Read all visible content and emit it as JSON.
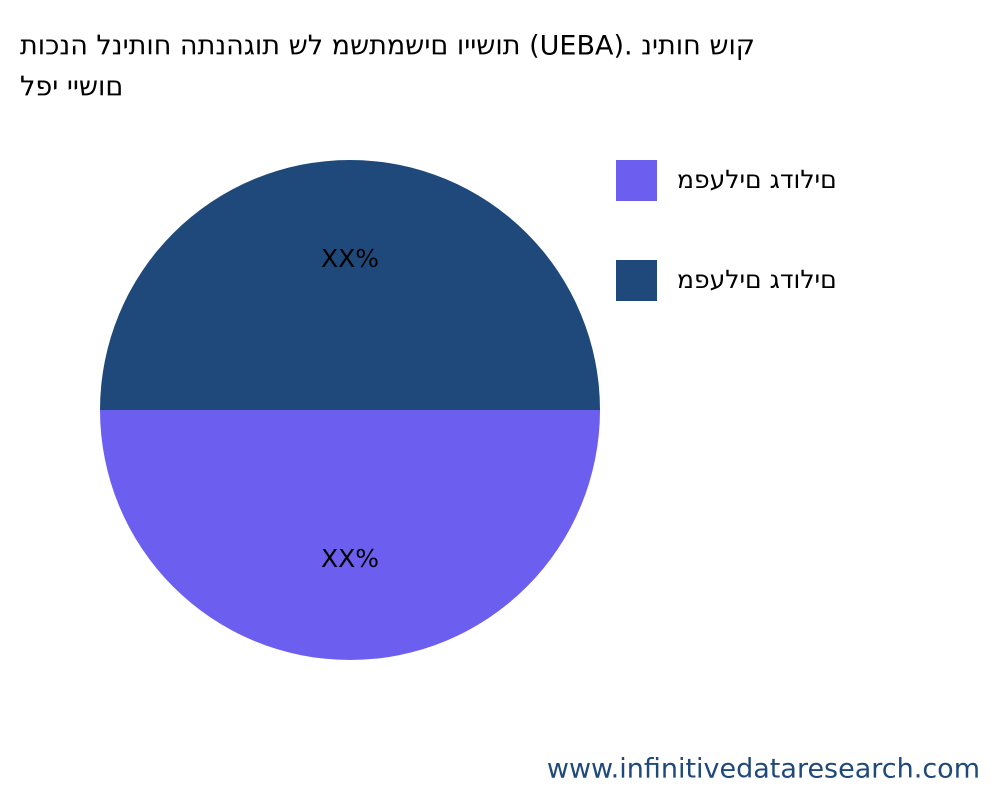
{
  "chart_data": {
    "type": "pie",
    "title": [
      "תוכנה לניתוח התנהגות של משתמשים ויישות (UEBA). ניתוח שוק",
      "לפי יישום"
    ],
    "categories": [
      "מפעלים גדולים",
      "מפעלים גדולים"
    ],
    "values": [
      50,
      50
    ],
    "value_labels": [
      "XX%",
      "XX%"
    ],
    "colors": [
      "#6c5ff0",
      "#1f497a"
    ],
    "legend": "upper right",
    "source": "www.infinitivedataresearch.com"
  }
}
